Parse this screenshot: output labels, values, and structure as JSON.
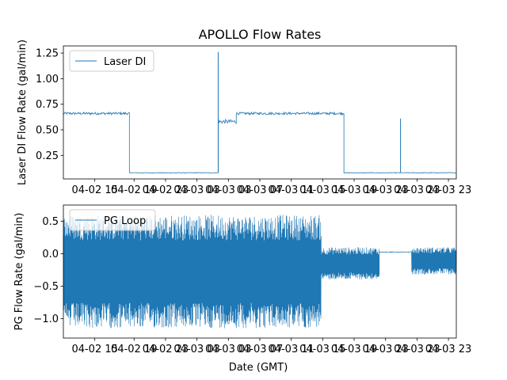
{
  "chart_data": [
    {
      "type": "line",
      "title": "APOLLO Flow Rates",
      "ylabel": "Laser DI Flow Rate (gal/min)",
      "xlabel": "",
      "ylim": [
        0.02,
        1.32
      ],
      "yticks": [
        0.25,
        0.5,
        0.75,
        1.0,
        1.25
      ],
      "ytick_labels": [
        "0.25",
        "0.50",
        "0.75",
        "1.00",
        "1.25"
      ],
      "xlim": [
        10,
        60
      ],
      "xticks": [
        14,
        19,
        23,
        27,
        31,
        35,
        39,
        43,
        47,
        51,
        55,
        59
      ],
      "xtick_labels": [
        "04-02 15",
        "04-02 19",
        "04-02 23",
        "04-03 03",
        "04-03 03",
        "04-03 07",
        "04-03 11",
        "04-03 15",
        "04-03 19",
        "04-03 23",
        "04-03 23",
        "04-03 23"
      ],
      "legend": {
        "label": "Laser DI",
        "position": "upper-left"
      },
      "color": "#1f77b4",
      "segments": [
        {
          "x_start": 10,
          "x_end": 18.4,
          "level": 0.66,
          "noise": 0.012
        },
        {
          "x_start": 18.4,
          "x_end": 29.7,
          "level": 0.08,
          "noise": 0.003
        },
        {
          "x_start": 29.7,
          "x_end": 32.0,
          "level": 0.58,
          "noise": 0.02
        },
        {
          "x_start": 32.0,
          "x_end": 45.7,
          "level": 0.66,
          "noise": 0.012
        },
        {
          "x_start": 45.7,
          "x_end": 60,
          "level": 0.08,
          "noise": 0.003
        }
      ],
      "spikes": [
        {
          "x": 29.7,
          "value": 1.26
        },
        {
          "x": 52.9,
          "value": 0.61
        }
      ]
    },
    {
      "type": "line",
      "title": "",
      "ylabel": "PG Flow Rate (gal/min)",
      "xlabel": "Date (GMT)",
      "ylim": [
        -1.3,
        0.75
      ],
      "yticks": [
        -1.0,
        -0.5,
        0.0,
        0.5
      ],
      "ytick_labels": [
        "−1.0",
        "−0.5",
        "0.0",
        "0.5"
      ],
      "xlim": [
        10,
        60
      ],
      "xticks": [
        14,
        19,
        23,
        27,
        31,
        35,
        39,
        43,
        47,
        51,
        55,
        59
      ],
      "xtick_labels": [
        "04-02 15",
        "04-02 19",
        "04-02 23",
        "04-03 03",
        "04-03 03",
        "04-03 07",
        "04-03 11",
        "04-03 15",
        "04-03 19",
        "04-03 23",
        "04-03 23",
        "04-03 23"
      ],
      "legend": {
        "label": "PG Loop",
        "position": "upper-left"
      },
      "color": "#1f77b4",
      "segments": [
        {
          "x_start": 10,
          "x_end": 42.8,
          "low": -1.15,
          "high": 0.6,
          "style": "oscillation"
        },
        {
          "x_start": 42.8,
          "x_end": 50.2,
          "low": -0.4,
          "high": 0.1,
          "style": "oscillation"
        },
        {
          "x_start": 50.2,
          "x_end": 54.3,
          "low": 0.02,
          "high": 0.03,
          "style": "flat"
        },
        {
          "x_start": 54.3,
          "x_end": 60,
          "low": -0.32,
          "high": 0.1,
          "style": "oscillation"
        }
      ]
    }
  ]
}
